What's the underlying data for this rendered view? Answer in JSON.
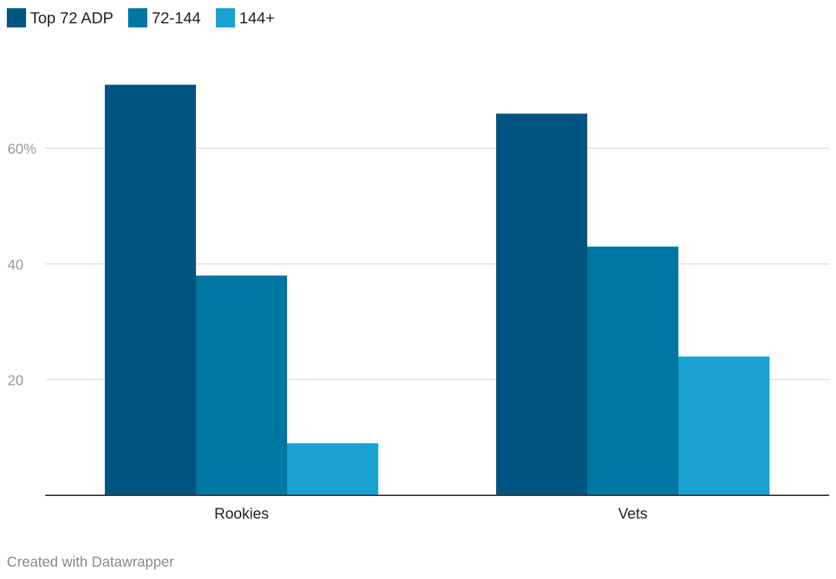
{
  "colors": {
    "top72": "#005580",
    "mid": "#0076a3",
    "low": "#19a2cf",
    "grid": "#dddddd",
    "axis": "#333333",
    "tick_text": "#9a9a9a",
    "category_text": "#222222"
  },
  "chart_data": {
    "type": "bar",
    "categories": [
      "Rookies",
      "Vets"
    ],
    "series": [
      {
        "name": "Top 72 ADP",
        "values": [
          71,
          66
        ],
        "color": "#005580"
      },
      {
        "name": "72-144",
        "values": [
          38,
          43
        ],
        "color": "#0076a3"
      },
      {
        "name": "144+",
        "values": [
          9,
          24
        ],
        "color": "#19a2cf"
      }
    ],
    "yticks": [
      {
        "value": 20,
        "label": "20"
      },
      {
        "value": 40,
        "label": "40"
      },
      {
        "value": 60,
        "label": "60%"
      }
    ],
    "ylim": [
      0,
      80
    ],
    "grid": true,
    "legend_position": "top-left"
  },
  "footer": "Created with Datawrapper"
}
